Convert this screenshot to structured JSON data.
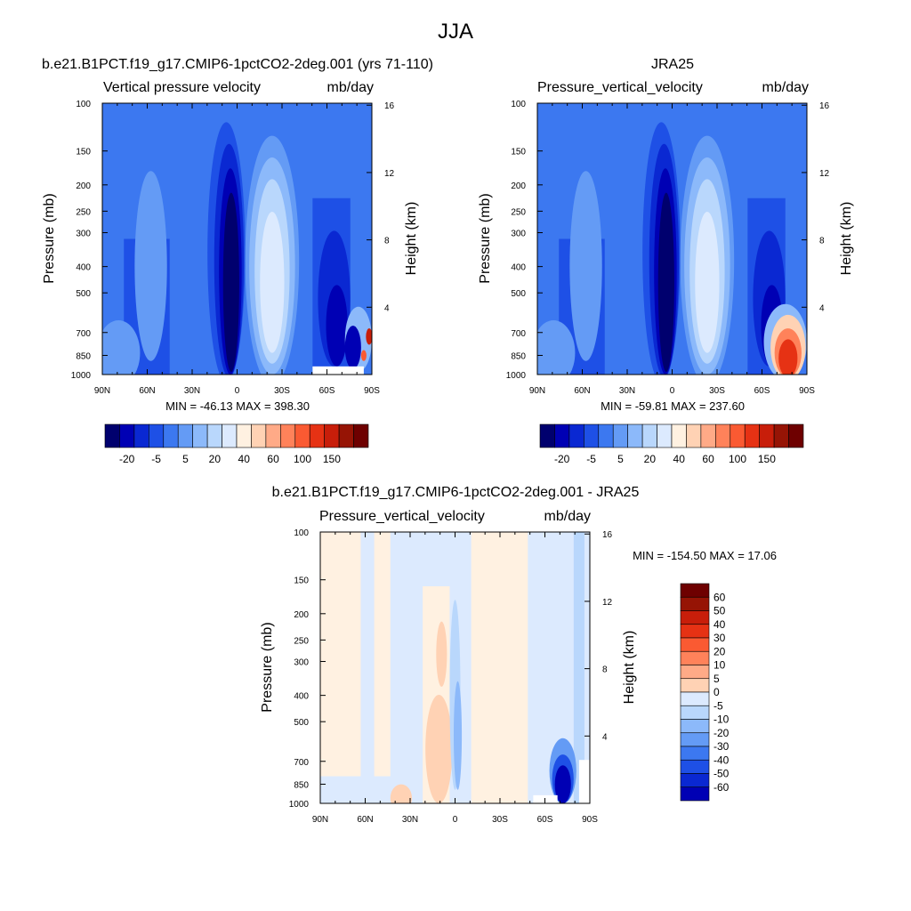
{
  "page_title": "JJA",
  "colors": {
    "panel_top_scale": [
      "#00006e",
      "#0000b4",
      "#0a28d2",
      "#1e50e6",
      "#3c78f0",
      "#649bf5",
      "#8cb9fa",
      "#b9d7fc",
      "#dceafe",
      "#fff1e1",
      "#ffd2b4",
      "#ffaa87",
      "#ff825a",
      "#fa5a32",
      "#e63214",
      "#c81e0a",
      "#961405",
      "#6e0000"
    ],
    "panel_diff_scale": [
      "#00006e",
      "#0000b4",
      "#0a28d2",
      "#1e50e6",
      "#3c78f0",
      "#649bf5",
      "#8cb9fa",
      "#b9d7fc",
      "#dceafe",
      "#fff1e1",
      "#ffd2b4",
      "#ffaa87",
      "#ff825a",
      "#fa5a32",
      "#e63214",
      "#c81e0a",
      "#961405",
      "#6e0000"
    ]
  },
  "chart_data": [
    {
      "type": "heatmap",
      "title": "b.e21.B1PCT.f19_g17.CMIP6-1pctCO2-2deg.001 (yrs 71-110)",
      "variable_label": "Vertical pressure velocity",
      "units_label": "mb/day",
      "xlabel": "",
      "ylabel": "Pressure (mb)",
      "ylabel_right": "Height (km)",
      "x_ticks": [
        "90N",
        "60N",
        "30N",
        "0",
        "30S",
        "60S",
        "90S"
      ],
      "y_ticks": [
        "100",
        "150",
        "200",
        "250",
        "300",
        "400",
        "500",
        "700",
        "850",
        "1000"
      ],
      "y_ticks_right": [
        "16",
        "12",
        "8",
        "4"
      ],
      "stats": "MIN = -46.13  MAX = 398.30",
      "colorbar_labels": [
        "-20",
        "-5",
        "5",
        "20",
        "40",
        "60",
        "100",
        "150"
      ],
      "field": [
        {
          "x": 0.0,
          "lo": 0.0,
          "hi": 1.0,
          "c": 5
        },
        {
          "x": 0.3,
          "lo": 0.0,
          "hi": 1.0,
          "c": 4
        },
        {
          "x": 0.42,
          "lo": 0.05,
          "hi": 0.95,
          "c": 3
        },
        {
          "x": 0.47,
          "lo": 0.15,
          "hi": 0.99,
          "c": 2
        },
        {
          "x": 0.47,
          "lo": 0.3,
          "hi": 0.95,
          "c": 0
        },
        {
          "x": 0.6,
          "lo": 0.15,
          "hi": 0.98,
          "c": 6
        },
        {
          "x": 0.6,
          "lo": 0.3,
          "hi": 0.95,
          "c": 8
        }
      ]
    },
    {
      "type": "heatmap",
      "title": "JRA25",
      "variable_label": "Pressure_vertical_velocity",
      "units_label": "mb/day",
      "xlabel": "",
      "ylabel": "Pressure (mb)",
      "ylabel_right": "Height (km)",
      "x_ticks": [
        "90N",
        "60N",
        "30N",
        "0",
        "30S",
        "60S",
        "90S"
      ],
      "y_ticks": [
        "100",
        "150",
        "200",
        "250",
        "300",
        "400",
        "500",
        "700",
        "850",
        "1000"
      ],
      "y_ticks_right": [
        "16",
        "12",
        "8",
        "4"
      ],
      "stats": "MIN = -59.81  MAX = 237.60",
      "colorbar_labels": [
        "-20",
        "-5",
        "5",
        "20",
        "40",
        "60",
        "100",
        "150"
      ]
    },
    {
      "type": "heatmap",
      "title": "b.e21.B1PCT.f19_g17.CMIP6-1pctCO2-2deg.001 - JRA25",
      "variable_label": "Pressure_vertical_velocity",
      "units_label": "mb/day",
      "xlabel": "",
      "ylabel": "Pressure (mb)",
      "ylabel_right": "Height (km)",
      "x_ticks": [
        "90N",
        "60N",
        "30N",
        "0",
        "30S",
        "60S",
        "90S"
      ],
      "y_ticks": [
        "100",
        "150",
        "200",
        "250",
        "300",
        "400",
        "500",
        "700",
        "850",
        "1000"
      ],
      "y_ticks_right": [
        "16",
        "12",
        "8",
        "4"
      ],
      "stats": "MIN = -154.50  MAX =  17.06",
      "colorbar_labels": [
        "60",
        "50",
        "40",
        "30",
        "20",
        "10",
        "5",
        "0",
        "-5",
        "-10",
        "-20",
        "-30",
        "-40",
        "-50",
        "-60"
      ]
    }
  ]
}
